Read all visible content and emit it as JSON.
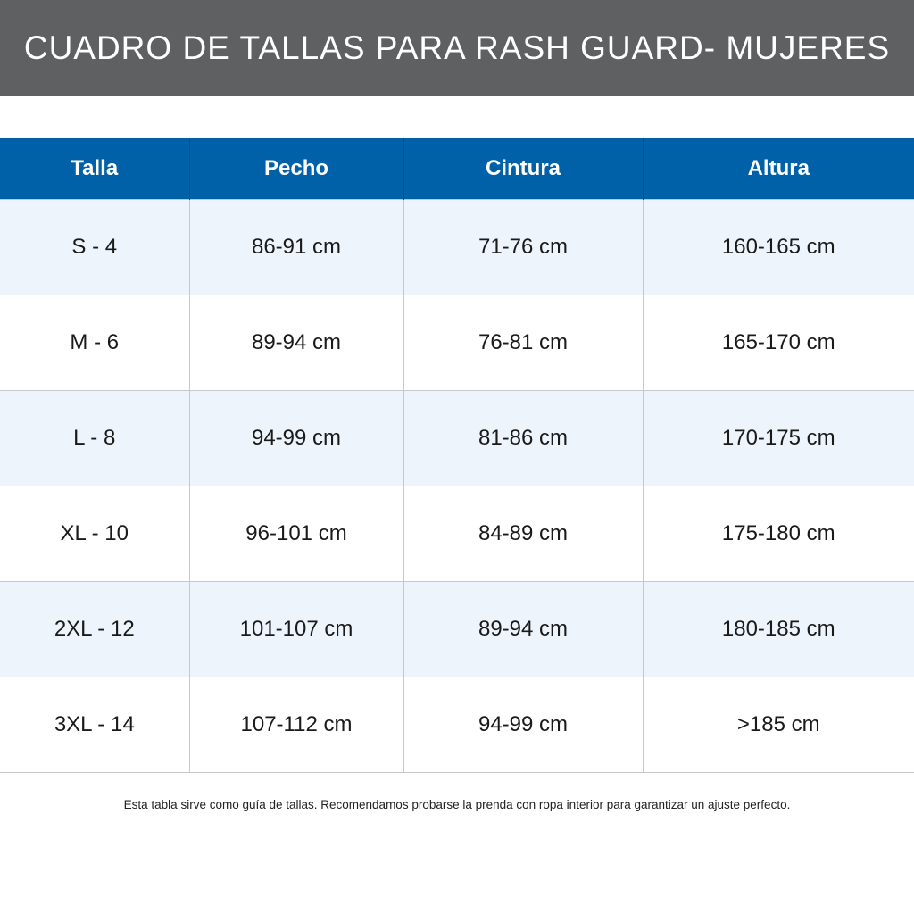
{
  "title": "CUADRO DE TALLAS PARA RASH GUARD- MUJERES",
  "colors": {
    "banner": "#5f6062",
    "header": "#0061a8",
    "alt_row": "#eef4fb"
  },
  "table": {
    "headers": [
      "Talla",
      "Pecho",
      "Cintura",
      "Altura"
    ],
    "rows": [
      [
        "S - 4",
        "86-91 cm",
        "71-76 cm",
        "160-165 cm"
      ],
      [
        "M - 6",
        "89-94 cm",
        "76-81 cm",
        "165-170 cm"
      ],
      [
        "L - 8",
        "94-99 cm",
        "81-86 cm",
        "170-175 cm"
      ],
      [
        "XL - 10",
        "96-101 cm",
        "84-89 cm",
        "175-180 cm"
      ],
      [
        "2XL - 12",
        "101-107 cm",
        "89-94 cm",
        "180-185 cm"
      ],
      [
        "3XL - 14",
        "107-112 cm",
        "94-99 cm",
        ">185 cm"
      ]
    ]
  },
  "note": "Esta tabla sirve como guía de tallas. Recomendamos probarse la prenda con ropa interior para garantizar un ajuste perfecto."
}
